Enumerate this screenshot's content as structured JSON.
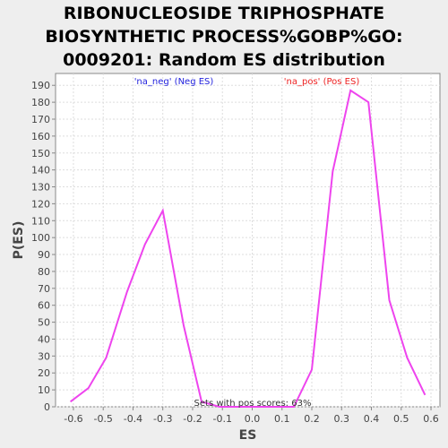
{
  "chart_data": {
    "type": "line",
    "title_lines": [
      "RIBONUCLEOSIDE TRIPHOSPHATE",
      "BIOSYNTHETIC PROCESS%GOBP%GO:",
      "0009201: Random ES distribution"
    ],
    "xlabel": "ES",
    "ylabel": "P(ES)",
    "xlim": [
      -0.66,
      0.63
    ],
    "ylim": [
      0,
      197
    ],
    "x_ticks": [
      "-0.6",
      "-0.5",
      "-0.4",
      "-0.3",
      "-0.2",
      "-0.1",
      "0.0",
      "0.1",
      "0.2",
      "0.3",
      "0.4",
      "0.5",
      "0.6"
    ],
    "y_ticks": [
      "0",
      "10",
      "20",
      "30",
      "40",
      "50",
      "60",
      "70",
      "80",
      "90",
      "100",
      "110",
      "120",
      "130",
      "140",
      "150",
      "160",
      "170",
      "180",
      "190"
    ],
    "grid": true,
    "series": [
      {
        "color": "#ee44ee",
        "x": [
          -0.61,
          -0.55,
          -0.49,
          -0.42,
          -0.36,
          -0.3,
          -0.23,
          -0.17,
          -0.11,
          -0.05,
          0.02,
          0.08,
          0.14,
          0.2,
          0.27,
          0.33,
          0.39,
          0.46,
          0.52,
          0.58
        ],
        "y": [
          3,
          11,
          29,
          68,
          96,
          116,
          48,
          3,
          0,
          0,
          0,
          0,
          0,
          22,
          139,
          187,
          180,
          63,
          29,
          7
        ]
      }
    ],
    "legend": [
      {
        "label": "'na_neg' (Neg ES)",
        "color": "#2222dd"
      },
      {
        "label": "'na_pos' (Pos ES)",
        "color": "#ee2222"
      }
    ],
    "annotation": "Sets with pos scores: 63%"
  }
}
